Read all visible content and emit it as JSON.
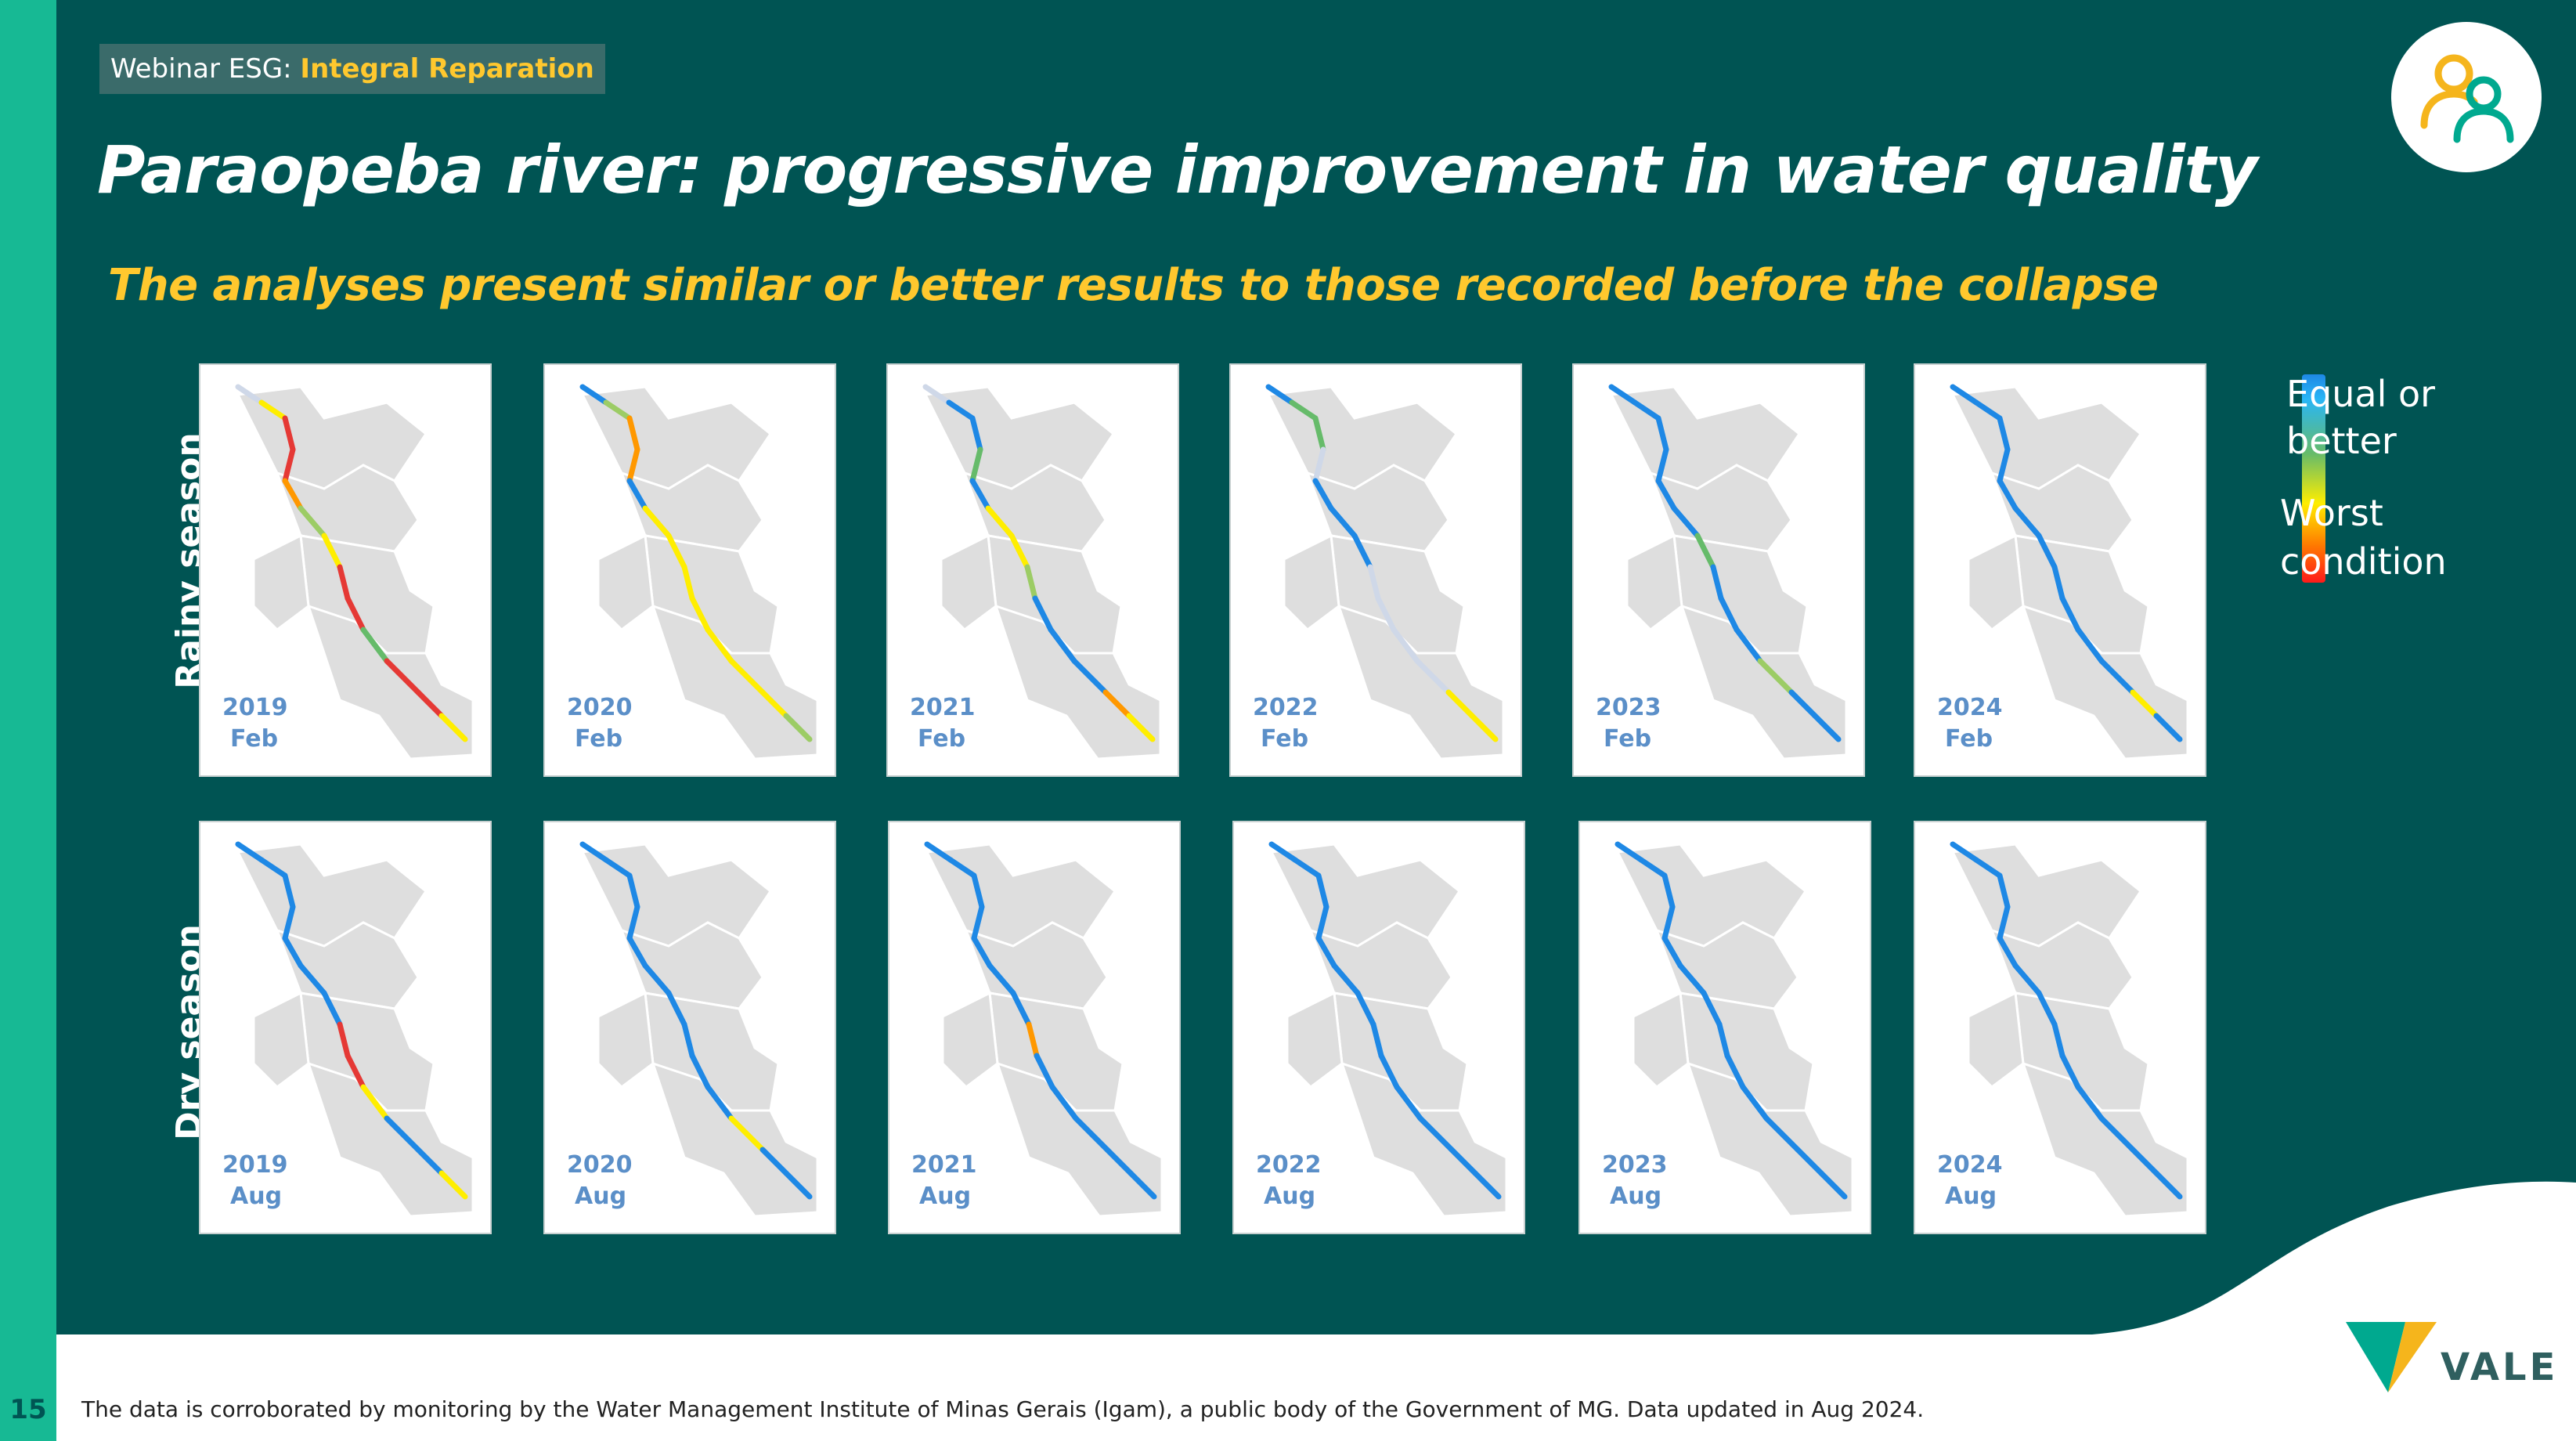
{
  "header": {
    "badge_prefix": "Webinar ESG: ",
    "badge_highlight": "Integral Reparation",
    "title": "Paraopeba river: progressive improvement in water quality",
    "subtitle": "The analyses present similar or better results to those recorded before the collapse"
  },
  "rows": {
    "rainy_label": "Rainy season",
    "dry_label": "Dry season"
  },
  "rainy_maps": [
    {
      "year": "2019",
      "month": "Feb",
      "colors": [
        "#cfd8e8",
        "#ffee00",
        "#e53935",
        "#e53935",
        "#ff9800",
        "#9ccc65",
        "#ffee00",
        "#e53935",
        "#e53935",
        "#66bb6a",
        "#e53935",
        "#e53935",
        "#ffee00"
      ]
    },
    {
      "year": "2020",
      "month": "Feb",
      "colors": [
        "#1e88e5",
        "#9ccc65",
        "#ff9800",
        "#ff9800",
        "#1e88e5",
        "#ffee00",
        "#ffee00",
        "#ffee00",
        "#ffee00",
        "#ffee00",
        "#ffee00",
        "#ffee00",
        "#9ccc65"
      ]
    },
    {
      "year": "2021",
      "month": "Feb",
      "colors": [
        "#cfd8e8",
        "#1e88e5",
        "#1e88e5",
        "#66bb6a",
        "#1e88e5",
        "#ffee00",
        "#ffee00",
        "#9ccc65",
        "#1e88e5",
        "#1e88e5",
        "#1e88e5",
        "#ff9800",
        "#ffee00"
      ]
    },
    {
      "year": "2022",
      "month": "Feb",
      "colors": [
        "#1e88e5",
        "#66bb6a",
        "#66bb6a",
        "#cfd8e8",
        "#1e88e5",
        "#1e88e5",
        "#1e88e5",
        "#cfd8e8",
        "#cfd8e8",
        "#cfd8e8",
        "#cfd8e8",
        "#ffee00",
        "#ffee00"
      ]
    },
    {
      "year": "2023",
      "month": "Feb",
      "colors": [
        "#1e88e5",
        "#1e88e5",
        "#1e88e5",
        "#1e88e5",
        "#1e88e5",
        "#1e88e5",
        "#66bb6a",
        "#1e88e5",
        "#1e88e5",
        "#1e88e5",
        "#9ccc65",
        "#1e88e5",
        "#1e88e5"
      ]
    },
    {
      "year": "2024",
      "month": "Feb",
      "colors": [
        "#1e88e5",
        "#1e88e5",
        "#1e88e5",
        "#1e88e5",
        "#1e88e5",
        "#1e88e5",
        "#1e88e5",
        "#1e88e5",
        "#1e88e5",
        "#1e88e5",
        "#1e88e5",
        "#ffee00",
        "#1e88e5"
      ]
    }
  ],
  "dry_maps": [
    {
      "year": "2019",
      "month": "Aug",
      "colors": [
        "#1e88e5",
        "#1e88e5",
        "#1e88e5",
        "#1e88e5",
        "#1e88e5",
        "#1e88e5",
        "#1e88e5",
        "#e53935",
        "#e53935",
        "#ffee00",
        "#1e88e5",
        "#1e88e5",
        "#ffee00"
      ]
    },
    {
      "year": "2020",
      "month": "Aug",
      "colors": [
        "#1e88e5",
        "#1e88e5",
        "#1e88e5",
        "#1e88e5",
        "#1e88e5",
        "#1e88e5",
        "#1e88e5",
        "#1e88e5",
        "#1e88e5",
        "#1e88e5",
        "#ffee00",
        "#1e88e5",
        "#1e88e5"
      ]
    },
    {
      "year": "2021",
      "month": "Aug",
      "colors": [
        "#1e88e5",
        "#1e88e5",
        "#1e88e5",
        "#1e88e5",
        "#1e88e5",
        "#1e88e5",
        "#1e88e5",
        "#ff9800",
        "#1e88e5",
        "#1e88e5",
        "#1e88e5",
        "#1e88e5",
        "#1e88e5"
      ]
    },
    {
      "year": "2022",
      "month": "Aug",
      "colors": [
        "#1e88e5",
        "#1e88e5",
        "#1e88e5",
        "#1e88e5",
        "#1e88e5",
        "#1e88e5",
        "#1e88e5",
        "#1e88e5",
        "#1e88e5",
        "#1e88e5",
        "#1e88e5",
        "#1e88e5",
        "#1e88e5"
      ]
    },
    {
      "year": "2023",
      "month": "Aug",
      "colors": [
        "#1e88e5",
        "#1e88e5",
        "#1e88e5",
        "#1e88e5",
        "#1e88e5",
        "#1e88e5",
        "#1e88e5",
        "#1e88e5",
        "#1e88e5",
        "#1e88e5",
        "#1e88e5",
        "#1e88e5",
        "#1e88e5"
      ]
    },
    {
      "year": "2024",
      "month": "Aug",
      "colors": [
        "#1e88e5",
        "#1e88e5",
        "#1e88e5",
        "#1e88e5",
        "#1e88e5",
        "#1e88e5",
        "#1e88e5",
        "#1e88e5",
        "#1e88e5",
        "#1e88e5",
        "#1e88e5",
        "#1e88e5",
        "#1e88e5"
      ]
    }
  ],
  "legend": {
    "best_line1": "Equal or",
    "best_line2": "better",
    "worst_line1": "Worst",
    "worst_line2": "condition"
  },
  "footer": {
    "page_number": "15",
    "note": "The data is corroborated by monitoring by the Water Management Institute of Minas Gerais (Igam), a public body of the Government of MG. Data updated in Aug 2024."
  },
  "brand": {
    "logo_text": "VALE",
    "colors": {
      "dark_teal": "#005453",
      "accent_green": "#17b994",
      "accent_yellow": "#ffc82e",
      "vale_teal": "#00a98f",
      "vale_yellow": "#f5b51c"
    }
  }
}
